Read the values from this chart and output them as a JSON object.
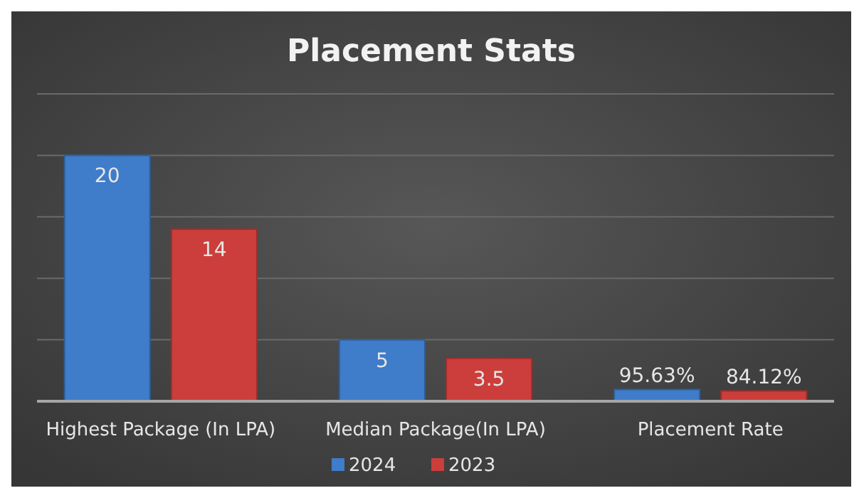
{
  "chart_data": {
    "type": "bar",
    "title": "Placement Stats",
    "categories": [
      "Highest Package (In LPA)",
      "Median Package(In LPA)",
      "Placement Rate"
    ],
    "series": [
      {
        "name": "2024",
        "color": "#3f7cc9",
        "values": [
          20,
          5,
          0.9563
        ],
        "value_labels": [
          "20",
          "5",
          "95.63%"
        ]
      },
      {
        "name": "2023",
        "color": "#cc3e3b",
        "values": [
          14,
          3.5,
          0.8412
        ],
        "value_labels": [
          "14",
          "3.5",
          "84.12%"
        ]
      }
    ],
    "ylim": [
      0,
      25
    ],
    "yticks": [
      {
        "value": 0,
        "label": null
      },
      {
        "value": 5,
        "label": null
      },
      {
        "value": 10,
        "label": null
      },
      {
        "value": 15,
        "label": null
      },
      {
        "value": 20,
        "label": null
      },
      {
        "value": 25,
        "label": null
      }
    ],
    "tick_labels": "x",
    "grid": "y",
    "legend": "bottom"
  }
}
